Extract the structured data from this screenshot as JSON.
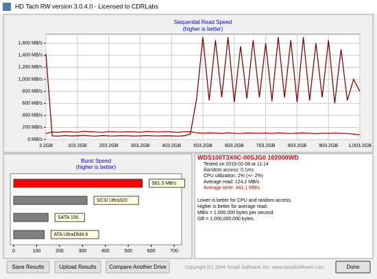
{
  "window": {
    "title": "HD Tach RW version 3.0.4.0 - Licensed to CDRLabs"
  },
  "chart_data": [
    {
      "type": "line",
      "title": "Sequential Read Speed",
      "subtitle": "(higher is better)",
      "x": [
        3.2,
        23.2,
        43.2,
        63.2,
        83.2,
        103.2,
        123.2,
        143.2,
        163.2,
        183.2,
        203.2,
        223.2,
        243.2,
        263.2,
        283.2,
        303.2,
        323.2,
        343.2,
        363.2,
        383.2,
        403.2,
        423.2,
        443.2,
        463.2,
        483.2,
        503.2,
        523.2,
        543.2,
        563.2,
        583.2,
        603.2,
        623.2,
        643.2,
        663.2,
        683.2,
        703.2,
        723.2,
        743.2,
        763.2,
        783.2,
        803.2,
        823.2,
        843.2,
        863.2,
        883.2,
        903.2,
        923.2,
        943.2,
        963.2,
        983.2,
        1003.2
      ],
      "series": [
        {
          "color": "#c00000",
          "values": [
            100,
            125,
            120,
            130,
            128,
            122,
            135,
            130,
            126,
            118,
            132,
            128,
            124,
            130,
            127,
            121,
            133,
            129,
            125,
            131,
            126,
            120,
            128,
            130,
            112,
            105,
            110,
            108,
            100,
            112,
            104,
            98,
            110,
            106,
            102,
            108,
            100,
            112,
            104,
            98,
            106,
            110,
            102,
            96,
            104,
            100,
            108,
            102,
            98,
            90,
            80
          ]
        },
        {
          "color": "#8b0000",
          "values": [
            1420,
            60,
            55,
            65,
            58,
            62,
            70,
            60,
            55,
            66,
            60,
            58,
            64,
            62,
            57,
            60,
            65,
            60,
            58,
            62,
            60,
            55,
            62,
            90,
            680,
            1700,
            650,
            1650,
            700,
            1700,
            620,
            1550,
            680,
            1650,
            700,
            1600,
            640,
            1700,
            700,
            1650,
            620,
            1700,
            650,
            1600,
            700,
            1650,
            600,
            1500,
            650,
            1000,
            800
          ]
        }
      ],
      "xlim": [
        3.2,
        1003.2
      ],
      "xticks": [
        {
          "value": 3.2,
          "label": "3.2GB"
        },
        {
          "value": 103.2,
          "label": "103.2GB"
        },
        {
          "value": 203.2,
          "label": "203.2GB"
        },
        {
          "value": 303.2,
          "label": "303.2GB"
        },
        {
          "value": 403.2,
          "label": "403.2GB"
        },
        {
          "value": 503.2,
          "label": "503.2GB"
        },
        {
          "value": 603.2,
          "label": "603.2GB"
        },
        {
          "value": 703.2,
          "label": "703.2GB"
        },
        {
          "value": 803.2,
          "label": "803.2GB"
        },
        {
          "value": 903.2,
          "label": "903.2GB"
        },
        {
          "value": 1003.2,
          "label": "1,003.2GB"
        }
      ],
      "ylim": [
        0,
        1750
      ],
      "yticks": [
        {
          "value": 0,
          "label": "0 MB/s"
        },
        {
          "value": 200,
          "label": "200 MB/s"
        },
        {
          "value": 400,
          "label": "400 MB/s"
        },
        {
          "value": 600,
          "label": "600 MB/s"
        },
        {
          "value": 800,
          "label": "800 MB/s"
        },
        {
          "value": 1000,
          "label": "1,000 MB/s"
        },
        {
          "value": 1200,
          "label": "1,200 MB/s"
        },
        {
          "value": 1400,
          "label": "1,400 MB/s"
        },
        {
          "value": 1600,
          "label": "1,600 MB/s"
        }
      ],
      "grid": true
    },
    {
      "type": "hbar",
      "title": "Burst Speed",
      "subtitle": "(higher is better)",
      "categories": [
        null,
        "SCSI Ultra320",
        "SATA 150",
        "ATA UltraDMA 6"
      ],
      "values": [
        561.3,
        320,
        150,
        133
      ],
      "value_labels": [
        "561.3 MB/s",
        null,
        null,
        null
      ],
      "colors": [
        "#ff0000",
        "#808080",
        "#808080",
        "#808080"
      ],
      "xlim": [
        0,
        700
      ],
      "xticks": [
        0,
        100,
        200,
        300,
        400,
        500,
        600,
        700
      ],
      "grid": false
    }
  ],
  "info": {
    "drive": "WDS100T3X0C-00SJG0 102000WD",
    "stats": [
      "Tested on 2019-02-08 at 11:14",
      "Random access: 0.1ms",
      "CPU utilization: 2% (+/- 2%)",
      "Average read: 124.2 MB/s"
    ],
    "write": "Average write: 441.1 MB/s",
    "notes": [
      "Lower is better for CPU and random access.",
      "Higher is better for average read.",
      "MB/s = 1,000,000 bytes per second.",
      "GB = 1,000,000,000 bytes."
    ]
  },
  "buttons": [
    "Save Results",
    "Upload Results",
    "Compare Another Drive"
  ],
  "footer": "Copyright (C) 2004 Simpli Software, Inc. www.simplisoftware.com",
  "done": "Done"
}
